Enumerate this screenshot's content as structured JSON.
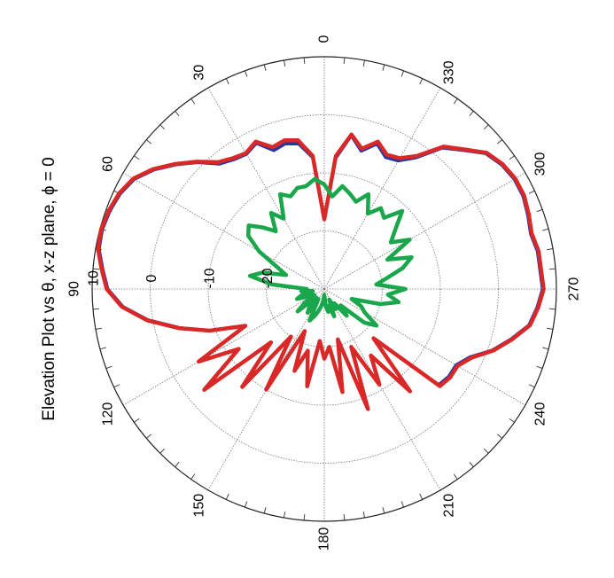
{
  "figure": {
    "title": "Elevation Plot vs θ,  x-z plane, ϕ = 0",
    "background": "#ffffff"
  },
  "chart_data": {
    "type": "polar",
    "title": "Elevation Plot vs θ,  x-z plane, ϕ = 0",
    "angle_unit": "degrees",
    "angle_ticks": [
      0,
      30,
      60,
      90,
      120,
      150,
      180,
      210,
      240,
      270,
      300,
      330
    ],
    "angle_tick_labels": [
      "0",
      "30",
      "60",
      "90",
      "120",
      "150",
      "180",
      "210",
      "240",
      "270",
      "300",
      "330"
    ],
    "radial_ticks": [
      -20,
      -10,
      0,
      10
    ],
    "radial_tick_labels": [
      "-20",
      "-10",
      "0",
      "10"
    ],
    "radial_range": [
      -30,
      10
    ],
    "grid": true,
    "series": [
      {
        "color": "#d92828",
        "angles": [
          0,
          5,
          10,
          15,
          20,
          25,
          30,
          35,
          40,
          45,
          50,
          55,
          60,
          65,
          70,
          75,
          80,
          85,
          90,
          95,
          100,
          105,
          110,
          115,
          120,
          125,
          130,
          135,
          140,
          145,
          150,
          155,
          160,
          165,
          170,
          175,
          180,
          185,
          190,
          195,
          200,
          205,
          210,
          215,
          220,
          225,
          230,
          235,
          240,
          245,
          250,
          255,
          260,
          265,
          270,
          275,
          280,
          285,
          290,
          295,
          300,
          305,
          310,
          315,
          320,
          325,
          330,
          335,
          340,
          345,
          350,
          355
        ],
        "values": [
          -18,
          -7,
          -4,
          -3.5,
          -4,
          -2,
          -3,
          -2.5,
          -1.5,
          1,
          3.5,
          6,
          8,
          9,
          9.5,
          9.8,
          9.6,
          8.5,
          7.5,
          5,
          1,
          -4,
          -9,
          -15,
          -5,
          -12,
          -3,
          -17,
          -8,
          -20,
          -10,
          -22,
          -15,
          -19,
          -13,
          -21,
          -18,
          -20,
          -12,
          -21,
          -8,
          -19,
          -11,
          -16,
          -7,
          -18,
          -4,
          -3.5,
          -3.5,
          -2,
          1,
          3.5,
          6,
          7,
          7.8,
          7.5,
          7.5,
          7,
          7.5,
          8,
          8,
          7.5,
          6.5,
          4,
          2,
          -2,
          -4,
          -4.5,
          -3,
          -5,
          -3,
          -7
        ]
      },
      {
        "color": "#2a36a0",
        "angles": [
          0,
          5,
          10,
          15,
          20,
          25,
          30,
          35,
          40,
          45,
          50,
          55,
          60,
          65,
          70,
          75,
          80,
          85,
          90,
          95,
          100,
          105,
          110,
          115,
          120,
          125,
          130,
          135,
          140,
          145,
          150,
          155,
          160,
          165,
          170,
          175,
          180,
          185,
          190,
          195,
          200,
          205,
          210,
          215,
          220,
          225,
          230,
          235,
          240,
          245,
          250,
          255,
          260,
          265,
          270,
          275,
          280,
          285,
          290,
          295,
          300,
          305,
          310,
          315,
          320,
          325,
          330,
          335,
          340,
          345,
          350,
          355
        ],
        "values": [
          -18,
          -7.3,
          -4.6,
          -4.1,
          -4.6,
          -2.3,
          -3.2,
          -2.8,
          -1.9,
          0.8,
          3.3,
          5.8,
          7.8,
          8.8,
          9.3,
          9.6,
          9.4,
          8.3,
          7.3,
          4.8,
          0.8,
          -4.2,
          -9,
          -15,
          -5.3,
          -12,
          -3.4,
          -17,
          -8.2,
          -20,
          -10.2,
          -22,
          -15,
          -19,
          -13,
          -21,
          -18,
          -20,
          -12,
          -21,
          -8.2,
          -19,
          -11,
          -16,
          -7.3,
          -18,
          -4.3,
          -3.8,
          -3.8,
          -2.3,
          0.8,
          3.3,
          5.8,
          6.8,
          7.6,
          7.3,
          7.3,
          6.8,
          7.3,
          7.8,
          7.8,
          7.3,
          6.3,
          3.8,
          1.7,
          -2.4,
          -4.5,
          -5,
          -3.4,
          -5.4,
          -3.2,
          -7.4
        ]
      },
      {
        "color": "#1aa64a",
        "angles": [
          0,
          5,
          10,
          15,
          20,
          25,
          30,
          35,
          40,
          45,
          50,
          55,
          60,
          65,
          70,
          75,
          80,
          85,
          90,
          95,
          100,
          105,
          110,
          115,
          120,
          125,
          130,
          135,
          140,
          145,
          150,
          155,
          160,
          165,
          170,
          175,
          180,
          185,
          190,
          195,
          200,
          205,
          210,
          215,
          220,
          225,
          230,
          235,
          240,
          245,
          250,
          255,
          260,
          265,
          270,
          275,
          280,
          285,
          290,
          295,
          300,
          305,
          310,
          315,
          320,
          325,
          330,
          335,
          340,
          345,
          350,
          355
        ],
        "values": [
          -12,
          -11,
          -12,
          -12,
          -13,
          -12,
          -16,
          -14,
          -17,
          -15,
          -13,
          -14,
          -17,
          -21,
          -23,
          -19,
          -17,
          -21,
          -27,
          -26,
          -28,
          -26,
          -25,
          -27,
          -28,
          -26,
          -24,
          -28,
          -26,
          -25,
          -28,
          -24,
          -25,
          -26,
          -27,
          -28,
          -29,
          -27,
          -26,
          -27,
          -25,
          -28,
          -26,
          -27,
          -24,
          -26,
          -21,
          -19,
          -22,
          -23,
          -25,
          -20,
          -17,
          -19,
          -16,
          -21,
          -19,
          -16,
          -14,
          -18,
          -13,
          -16,
          -14,
          -11,
          -14,
          -13,
          -15,
          -12,
          -14,
          -13,
          -12,
          -14
        ]
      }
    ]
  }
}
